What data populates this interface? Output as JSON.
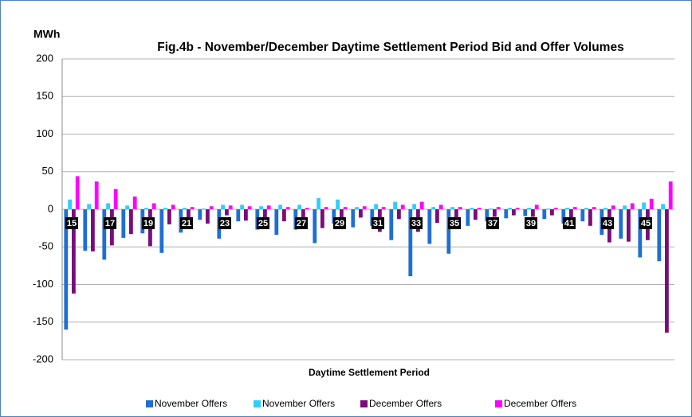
{
  "chart_data": {
    "type": "bar",
    "title": "Fig.4b - November/December Daytime Settlement Period Bid and Offer Volumes",
    "y_label": "MWh",
    "x_label": "Daytime Settlement Period",
    "categories": [
      "15",
      null,
      "17",
      null,
      "19",
      null,
      "21",
      null,
      "23",
      null,
      "25",
      null,
      "27",
      null,
      "29",
      null,
      "31",
      null,
      "33",
      null,
      "35",
      null,
      "37",
      null,
      "39",
      null,
      "41",
      null,
      "43",
      null,
      "45",
      null
    ],
    "series": [
      {
        "name": "November Offers",
        "color": "#1f6fd1",
        "values": [
          -160,
          -55,
          -67,
          -38,
          -32,
          -58,
          -31,
          -14,
          -39,
          -16,
          -27,
          -34,
          -27,
          -45,
          -19,
          -24,
          -22,
          -41,
          -89,
          -46,
          -59,
          -22,
          -16,
          -12,
          -9,
          -13,
          -19,
          -16,
          -34,
          -39,
          -64,
          -69
        ]
      },
      {
        "name": "November Offers",
        "color": "#33ccff",
        "values": [
          13,
          7,
          8,
          5,
          2,
          2,
          2,
          1,
          6,
          6,
          4,
          6,
          6,
          15,
          13,
          3,
          7,
          10,
          7,
          3,
          3,
          2,
          1,
          2,
          2,
          1,
          2,
          2,
          2,
          5,
          9,
          7
        ]
      },
      {
        "name": "December Offers",
        "color": "#7b0c7b",
        "values": [
          -112,
          -56,
          -48,
          -33,
          -49,
          -20,
          -22,
          -19,
          -8,
          -15,
          -22,
          -16,
          -22,
          -25,
          -17,
          -11,
          -30,
          -13,
          -30,
          -18,
          -18,
          -14,
          -10,
          -8,
          -10,
          -8,
          -21,
          -22,
          -44,
          -43,
          -41,
          -164
        ]
      },
      {
        "name": "December Offers",
        "color": "#ff00ff",
        "values": [
          44,
          37,
          27,
          17,
          8,
          6,
          3,
          4,
          5,
          4,
          5,
          3,
          2,
          3,
          3,
          4,
          3,
          6,
          10,
          6,
          3,
          2,
          3,
          2,
          6,
          2,
          3,
          3,
          5,
          8,
          14,
          37
        ]
      }
    ],
    "ylim": [
      -200,
      200
    ],
    "yticks": [
      -200,
      -150,
      -100,
      -50,
      0,
      50,
      100,
      150,
      200
    ],
    "grid": true,
    "legend": "bottom"
  }
}
